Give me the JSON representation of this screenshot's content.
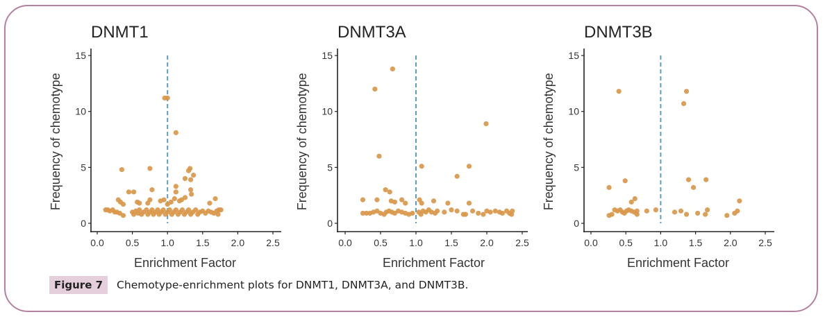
{
  "figure": {
    "label": "Figure 7",
    "caption": "Chemotype-enrichment plots for DNMT1, DNMT3A, and DNMT3B."
  },
  "colors": {
    "point": "#D9974A",
    "threshold_line": "#5E9DBD",
    "axis": "#222222",
    "frame": "#B57FA0",
    "label_bg": "#E6CFDD"
  },
  "chart_data": [
    {
      "type": "scatter",
      "title": "DNMT1",
      "xlabel": "Enrichment Factor",
      "ylabel": "Frequency of chemotype",
      "xlim": [
        -0.05,
        2.6
      ],
      "ylim": [
        -0.6,
        15.6
      ],
      "xticks": [
        "0.0",
        "0.5",
        "1.0",
        "1.5",
        "2.0",
        "2.5"
      ],
      "yticks": [
        "0",
        "5",
        "10",
        "15"
      ],
      "grid": false,
      "vline": {
        "x": 1.0,
        "y_range": [
          0,
          15
        ],
        "style": "dashed"
      },
      "points": [
        [
          0.96,
          11.2
        ],
        [
          1.0,
          11.2
        ],
        [
          1.12,
          8.1
        ],
        [
          0.35,
          4.8
        ],
        [
          0.75,
          4.9
        ],
        [
          1.3,
          4.7
        ],
        [
          1.32,
          4.9
        ],
        [
          1.37,
          4.3
        ],
        [
          1.25,
          4.0
        ],
        [
          1.33,
          3.9
        ],
        [
          0.45,
          2.8
        ],
        [
          0.52,
          2.8
        ],
        [
          0.78,
          3.0
        ],
        [
          1.12,
          3.3
        ],
        [
          1.12,
          2.8
        ],
        [
          1.33,
          3.0
        ],
        [
          1.34,
          2.6
        ],
        [
          0.3,
          2.1
        ],
        [
          0.33,
          1.9
        ],
        [
          0.37,
          1.7
        ],
        [
          0.57,
          1.9
        ],
        [
          0.6,
          1.8
        ],
        [
          0.72,
          1.8
        ],
        [
          0.75,
          2.1
        ],
        [
          0.9,
          2.0
        ],
        [
          0.95,
          2.1
        ],
        [
          1.0,
          1.7
        ],
        [
          1.05,
          1.9
        ],
        [
          1.1,
          2.2
        ],
        [
          1.17,
          2.0
        ],
        [
          1.2,
          2.1
        ],
        [
          1.25,
          2.3
        ],
        [
          1.6,
          1.8
        ],
        [
          1.68,
          2.2
        ],
        [
          0.12,
          1.2
        ],
        [
          0.15,
          1.2
        ],
        [
          0.18,
          1.1
        ],
        [
          0.22,
          1.2
        ],
        [
          0.25,
          1.0
        ],
        [
          0.28,
          1.0
        ],
        [
          0.32,
          0.9
        ],
        [
          0.37,
          0.7
        ],
        [
          0.5,
          1.0
        ],
        [
          0.52,
          0.8
        ],
        [
          0.55,
          1.1
        ],
        [
          0.58,
          0.9
        ],
        [
          0.6,
          1.2
        ],
        [
          0.63,
          0.8
        ],
        [
          0.66,
          1.0
        ],
        [
          0.7,
          1.2
        ],
        [
          0.72,
          0.8
        ],
        [
          0.75,
          1.0
        ],
        [
          0.78,
          1.2
        ],
        [
          0.8,
          0.8
        ],
        [
          0.83,
          1.0
        ],
        [
          0.86,
          1.2
        ],
        [
          0.88,
          0.8
        ],
        [
          0.91,
          1.0
        ],
        [
          0.94,
          1.2
        ],
        [
          0.97,
          0.8
        ],
        [
          1.0,
          1.0
        ],
        [
          1.03,
          1.2
        ],
        [
          1.06,
          0.8
        ],
        [
          1.09,
          1.0
        ],
        [
          1.12,
          1.2
        ],
        [
          1.15,
          0.8
        ],
        [
          1.18,
          1.0
        ],
        [
          1.21,
          1.2
        ],
        [
          1.24,
          0.8
        ],
        [
          1.27,
          1.0
        ],
        [
          1.3,
          1.2
        ],
        [
          1.33,
          0.8
        ],
        [
          1.36,
          1.0
        ],
        [
          1.4,
          1.2
        ],
        [
          1.43,
          0.8
        ],
        [
          1.46,
          1.0
        ],
        [
          1.5,
          1.1
        ],
        [
          1.54,
          0.9
        ],
        [
          1.58,
          1.1
        ],
        [
          1.62,
          1.0
        ],
        [
          1.66,
          0.9
        ],
        [
          1.7,
          1.1
        ],
        [
          1.73,
          1.2
        ],
        [
          1.76,
          1.2
        ],
        [
          1.72,
          0.8
        ]
      ]
    },
    {
      "type": "scatter",
      "title": "DNMT3A",
      "xlabel": "Enrichment Factor",
      "ylabel": "Frequency of chemotype",
      "xlim": [
        -0.05,
        2.6
      ],
      "ylim": [
        -0.6,
        15.6
      ],
      "xticks": [
        "0.0",
        "0.5",
        "1.0",
        "1.5",
        "2.0",
        "2.5"
      ],
      "yticks": [
        "0",
        "5",
        "10",
        "15"
      ],
      "grid": false,
      "vline": {
        "x": 1.0,
        "y_range": [
          0,
          15
        ],
        "style": "dashed"
      },
      "points": [
        [
          0.67,
          13.8
        ],
        [
          0.42,
          12.0
        ],
        [
          1.99,
          8.9
        ],
        [
          0.48,
          6.0
        ],
        [
          1.08,
          5.1
        ],
        [
          1.75,
          5.1
        ],
        [
          1.58,
          4.2
        ],
        [
          0.57,
          3.0
        ],
        [
          0.63,
          2.8
        ],
        [
          0.25,
          2.1
        ],
        [
          0.45,
          2.1
        ],
        [
          0.65,
          2.0
        ],
        [
          0.7,
          1.9
        ],
        [
          0.8,
          2.1
        ],
        [
          0.85,
          1.8
        ],
        [
          1.05,
          2.1
        ],
        [
          1.08,
          1.8
        ],
        [
          1.25,
          2.0
        ],
        [
          1.45,
          1.8
        ],
        [
          1.75,
          1.8
        ],
        [
          0.25,
          0.9
        ],
        [
          0.3,
          0.9
        ],
        [
          0.35,
          0.9
        ],
        [
          0.4,
          1.0
        ],
        [
          0.45,
          1.1
        ],
        [
          0.5,
          0.9
        ],
        [
          0.55,
          0.8
        ],
        [
          0.58,
          1.0
        ],
        [
          0.62,
          1.1
        ],
        [
          0.66,
          1.0
        ],
        [
          0.7,
          0.9
        ],
        [
          0.75,
          1.1
        ],
        [
          0.8,
          1.0
        ],
        [
          0.85,
          0.9
        ],
        [
          0.9,
          0.8
        ],
        [
          0.95,
          0.9
        ],
        [
          1.04,
          1.0
        ],
        [
          1.07,
          0.8
        ],
        [
          1.1,
          1.1
        ],
        [
          1.14,
          1.0
        ],
        [
          1.18,
          1.2
        ],
        [
          1.22,
          1.0
        ],
        [
          1.27,
          0.9
        ],
        [
          1.3,
          1.1
        ],
        [
          1.4,
          1.0
        ],
        [
          1.5,
          1.2
        ],
        [
          1.58,
          1.1
        ],
        [
          1.67,
          0.8
        ],
        [
          1.7,
          0.8
        ],
        [
          1.8,
          1.1
        ],
        [
          1.88,
          0.9
        ],
        [
          1.95,
          0.8
        ],
        [
          2.0,
          1.1
        ],
        [
          2.05,
          1.0
        ],
        [
          2.12,
          1.1
        ],
        [
          2.18,
          1.0
        ],
        [
          2.22,
          0.9
        ],
        [
          2.28,
          1.1
        ],
        [
          2.32,
          0.9
        ],
        [
          2.35,
          0.8
        ],
        [
          2.36,
          1.1
        ]
      ]
    },
    {
      "type": "scatter",
      "title": "DNMT3B",
      "xlabel": "Enrichment Factor",
      "ylabel": "Frequency of chemotype",
      "xlim": [
        -0.05,
        2.6
      ],
      "ylim": [
        -0.6,
        15.6
      ],
      "xticks": [
        "0.0",
        "0.5",
        "1.0",
        "1.5",
        "2.0",
        "2.5"
      ],
      "yticks": [
        "0",
        "5",
        "10",
        "15"
      ],
      "grid": false,
      "vline": {
        "x": 1.0,
        "y_range": [
          0,
          15
        ],
        "style": "dashed"
      },
      "points": [
        [
          0.4,
          11.8
        ],
        [
          1.37,
          11.8
        ],
        [
          1.33,
          10.7
        ],
        [
          0.49,
          3.8
        ],
        [
          1.4,
          3.9
        ],
        [
          1.65,
          3.9
        ],
        [
          0.26,
          3.2
        ],
        [
          1.47,
          3.2
        ],
        [
          0.63,
          2.2
        ],
        [
          0.58,
          1.9
        ],
        [
          2.13,
          2.0
        ],
        [
          0.26,
          0.7
        ],
        [
          0.3,
          0.8
        ],
        [
          0.34,
          1.2
        ],
        [
          0.38,
          1.1
        ],
        [
          0.42,
          1.2
        ],
        [
          0.45,
          1.0
        ],
        [
          0.48,
          0.9
        ],
        [
          0.51,
          1.1
        ],
        [
          0.54,
          1.2
        ],
        [
          0.58,
          1.1
        ],
        [
          0.62,
          1.0
        ],
        [
          0.66,
          1.1
        ],
        [
          0.66,
          0.8
        ],
        [
          0.8,
          1.1
        ],
        [
          0.93,
          1.2
        ],
        [
          1.2,
          1.0
        ],
        [
          1.29,
          1.1
        ],
        [
          1.37,
          0.8
        ],
        [
          1.53,
          0.9
        ],
        [
          1.64,
          0.8
        ],
        [
          1.67,
          1.2
        ],
        [
          1.95,
          0.7
        ],
        [
          2.06,
          0.9
        ],
        [
          2.1,
          1.1
        ]
      ]
    }
  ]
}
